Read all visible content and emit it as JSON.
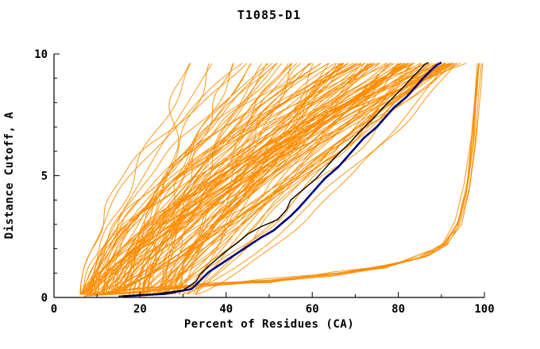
{
  "chart_data": {
    "type": "line",
    "title": "T1085-D1",
    "xlabel": "Percent of Residues (CA)",
    "ylabel": "Distance Cutoff, A",
    "xlim": [
      0,
      100
    ],
    "ylim": [
      0,
      10
    ],
    "x_major_ticks": [
      0,
      20,
      40,
      60,
      80,
      100
    ],
    "x_minor_step": 10,
    "y_major_ticks": [
      0,
      5,
      10
    ],
    "y_minor_step": 1,
    "grid": false,
    "legend": "none",
    "colors": {
      "ensemble": "#ff8c00",
      "highlight_navy": "#000080",
      "highlight_black": "#000000",
      "axis": "#000000",
      "background": "#ffffff"
    },
    "ensemble": {
      "description": "bundle of prediction curves, percent of residues under distance cutoff",
      "count": 125,
      "seed": 1085,
      "y_start": 0.12,
      "y_end": 9.62,
      "x_start_min": 6,
      "x_start_max": 33,
      "x_start_bias": 1.3,
      "x_end_min": 27,
      "x_end_max": 96,
      "x_end_bias": 0.5,
      "shape_min": 0.7,
      "shape_max": 1.9,
      "wiggle_max": 1.8
    },
    "outliers": {
      "description": "low-accuracy curves hugging the bottom then rising at the right edge",
      "count": 8,
      "seed": 77,
      "jitter": 1.3,
      "anchors": [
        [
          8,
          0.1
        ],
        [
          20,
          0.3
        ],
        [
          35,
          0.5
        ],
        [
          50,
          0.7
        ],
        [
          65,
          0.95
        ],
        [
          78,
          1.3
        ],
        [
          86,
          1.7
        ],
        [
          91,
          2.2
        ],
        [
          94,
          3.0
        ],
        [
          96,
          4.5
        ],
        [
          97.5,
          6.5
        ],
        [
          98.5,
          8.5
        ],
        [
          99,
          9.62
        ]
      ]
    },
    "series": [
      {
        "name": "highlight-navy",
        "color": "#000080",
        "width": 2.6,
        "points": [
          [
            16,
            0.05
          ],
          [
            26,
            0.15
          ],
          [
            32,
            0.35
          ],
          [
            34,
            0.7
          ],
          [
            36,
            1.05
          ],
          [
            39,
            1.4
          ],
          [
            42,
            1.75
          ],
          [
            45,
            2.1
          ],
          [
            48,
            2.45
          ],
          [
            51,
            2.75
          ],
          [
            53,
            3.05
          ],
          [
            55,
            3.35
          ],
          [
            57,
            3.7
          ],
          [
            59,
            4.1
          ],
          [
            61,
            4.5
          ],
          [
            63,
            4.9
          ],
          [
            66,
            5.35
          ],
          [
            68,
            5.75
          ],
          [
            70,
            6.15
          ],
          [
            72,
            6.55
          ],
          [
            75,
            7.0
          ],
          [
            77,
            7.4
          ],
          [
            79,
            7.8
          ],
          [
            82,
            8.25
          ],
          [
            84,
            8.65
          ],
          [
            86,
            9.05
          ],
          [
            88,
            9.4
          ],
          [
            89,
            9.55
          ],
          [
            90,
            9.65
          ]
        ]
      },
      {
        "name": "highlight-black",
        "color": "#000000",
        "width": 1.4,
        "points": [
          [
            15,
            0.05
          ],
          [
            24,
            0.15
          ],
          [
            30,
            0.3
          ],
          [
            33,
            0.65
          ],
          [
            34,
            0.95
          ],
          [
            36,
            1.3
          ],
          [
            38,
            1.6
          ],
          [
            40,
            1.9
          ],
          [
            43,
            2.3
          ],
          [
            45,
            2.6
          ],
          [
            48,
            2.9
          ],
          [
            52,
            3.2
          ],
          [
            54,
            3.6
          ],
          [
            55,
            4.0
          ],
          [
            58,
            4.45
          ],
          [
            61,
            4.9
          ],
          [
            63,
            5.3
          ],
          [
            65,
            5.7
          ],
          [
            67,
            6.05
          ],
          [
            69,
            6.4
          ],
          [
            71,
            6.8
          ],
          [
            73,
            7.15
          ],
          [
            75,
            7.5
          ],
          [
            77,
            7.9
          ],
          [
            79,
            8.25
          ],
          [
            81,
            8.6
          ],
          [
            83,
            9.0
          ],
          [
            85,
            9.35
          ],
          [
            86,
            9.55
          ],
          [
            87,
            9.65
          ]
        ]
      }
    ]
  }
}
